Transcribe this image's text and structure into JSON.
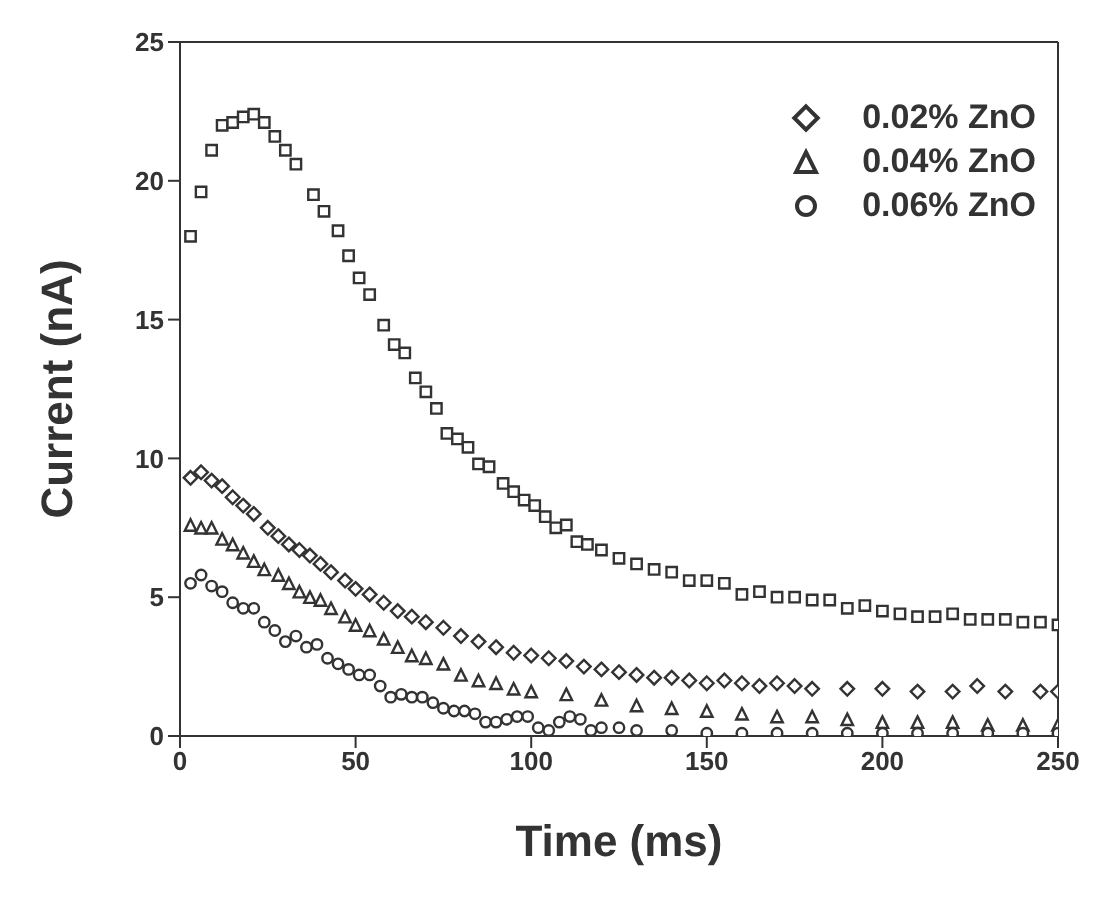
{
  "chart_data": {
    "type": "scatter",
    "xlabel": "Time (ms)",
    "ylabel": "Current (nA)",
    "xlim": [
      0,
      250
    ],
    "xticks": [
      0,
      50,
      100,
      150,
      200,
      250
    ],
    "ylim": [
      0,
      25
    ],
    "yticks": [
      0,
      5,
      10,
      15,
      20,
      25
    ],
    "legend": "top right",
    "series": [
      {
        "color": "#333333",
        "marker": "square",
        "x": [
          3,
          6,
          9,
          12,
          15,
          18,
          21,
          24,
          27,
          30,
          33,
          38,
          41,
          45,
          48,
          51,
          54,
          58,
          61,
          64,
          67,
          70,
          73,
          76,
          79,
          82,
          85,
          88,
          92,
          95,
          98,
          101,
          104,
          107,
          110,
          113,
          116,
          120,
          125,
          130,
          135,
          140,
          145,
          150,
          155,
          160,
          165,
          170,
          175,
          180,
          185,
          190,
          195,
          200,
          205,
          210,
          215,
          220,
          225,
          230,
          235,
          240,
          245,
          250
        ],
        "values": [
          18.0,
          19.6,
          21.1,
          22.0,
          22.1,
          22.3,
          22.4,
          22.1,
          21.6,
          21.1,
          20.6,
          19.5,
          18.9,
          18.2,
          17.3,
          16.5,
          15.9,
          14.8,
          14.1,
          13.8,
          12.9,
          12.4,
          11.8,
          10.9,
          10.7,
          10.4,
          9.8,
          9.7,
          9.1,
          8.8,
          8.5,
          8.3,
          7.9,
          7.5,
          7.6,
          7.0,
          6.9,
          6.7,
          6.4,
          6.2,
          6.0,
          5.9,
          5.6,
          5.6,
          5.5,
          5.1,
          5.2,
          5.0,
          5.0,
          4.9,
          4.9,
          4.6,
          4.7,
          4.5,
          4.4,
          4.3,
          4.3,
          4.4,
          4.2,
          4.2,
          4.2,
          4.1,
          4.1,
          4.0
        ]
      },
      {
        "name": "0.02% ZnO",
        "color": "#333333",
        "marker": "diamond",
        "x": [
          3,
          6,
          9,
          12,
          15,
          18,
          21,
          25,
          28,
          31,
          34,
          37,
          40,
          43,
          47,
          50,
          54,
          58,
          62,
          66,
          70,
          75,
          80,
          85,
          90,
          95,
          100,
          105,
          110,
          115,
          120,
          125,
          130,
          135,
          140,
          145,
          150,
          155,
          160,
          165,
          170,
          175,
          180,
          190,
          200,
          210,
          220,
          227,
          235,
          245,
          250
        ],
        "values": [
          9.3,
          9.5,
          9.2,
          9.0,
          8.6,
          8.3,
          8.0,
          7.5,
          7.2,
          6.9,
          6.7,
          6.5,
          6.2,
          5.9,
          5.6,
          5.3,
          5.1,
          4.8,
          4.5,
          4.3,
          4.1,
          3.9,
          3.6,
          3.4,
          3.2,
          3.0,
          2.9,
          2.8,
          2.7,
          2.5,
          2.4,
          2.3,
          2.2,
          2.1,
          2.1,
          2.0,
          1.9,
          2.0,
          1.9,
          1.8,
          1.9,
          1.8,
          1.7,
          1.7,
          1.7,
          1.6,
          1.6,
          1.8,
          1.6,
          1.6,
          1.6
        ]
      },
      {
        "name": "0.04% ZnO",
        "color": "#333333",
        "marker": "triangle",
        "x": [
          3,
          6,
          9,
          12,
          15,
          18,
          21,
          24,
          28,
          31,
          34,
          37,
          40,
          43,
          47,
          50,
          54,
          58,
          62,
          66,
          70,
          75,
          80,
          85,
          90,
          95,
          100,
          110,
          120,
          130,
          140,
          150,
          160,
          170,
          180,
          190,
          200,
          210,
          220,
          230,
          240,
          250
        ],
        "values": [
          7.6,
          7.5,
          7.5,
          7.1,
          6.9,
          6.6,
          6.3,
          6.0,
          5.8,
          5.5,
          5.2,
          5.0,
          4.9,
          4.6,
          4.3,
          4.0,
          3.8,
          3.5,
          3.2,
          2.9,
          2.8,
          2.6,
          2.2,
          2.0,
          1.9,
          1.7,
          1.6,
          1.5,
          1.3,
          1.1,
          1.0,
          0.9,
          0.8,
          0.7,
          0.7,
          0.6,
          0.5,
          0.5,
          0.5,
          0.4,
          0.4,
          0.4
        ]
      },
      {
        "name": "0.06% ZnO",
        "color": "#333333",
        "marker": "circle",
        "x": [
          3,
          6,
          9,
          12,
          15,
          18,
          21,
          24,
          27,
          30,
          33,
          36,
          39,
          42,
          45,
          48,
          51,
          54,
          57,
          60,
          63,
          66,
          69,
          72,
          75,
          78,
          81,
          84,
          87,
          90,
          93,
          96,
          99,
          102,
          105,
          108,
          111,
          114,
          117,
          120,
          125,
          130,
          140,
          150,
          160,
          170,
          180,
          190,
          200,
          210,
          220,
          230,
          240,
          250
        ],
        "values": [
          5.5,
          5.8,
          5.4,
          5.2,
          4.8,
          4.6,
          4.6,
          4.1,
          3.8,
          3.4,
          3.6,
          3.2,
          3.3,
          2.8,
          2.6,
          2.4,
          2.2,
          2.2,
          1.8,
          1.4,
          1.5,
          1.4,
          1.4,
          1.2,
          1.0,
          0.9,
          0.9,
          0.8,
          0.5,
          0.5,
          0.6,
          0.7,
          0.7,
          0.3,
          0.2,
          0.5,
          0.7,
          0.6,
          0.2,
          0.3,
          0.3,
          0.2,
          0.2,
          0.1,
          0.1,
          0.1,
          0.1,
          0.1,
          0.1,
          0.1,
          0.1,
          0.1,
          0.1,
          0.1
        ]
      }
    ]
  }
}
